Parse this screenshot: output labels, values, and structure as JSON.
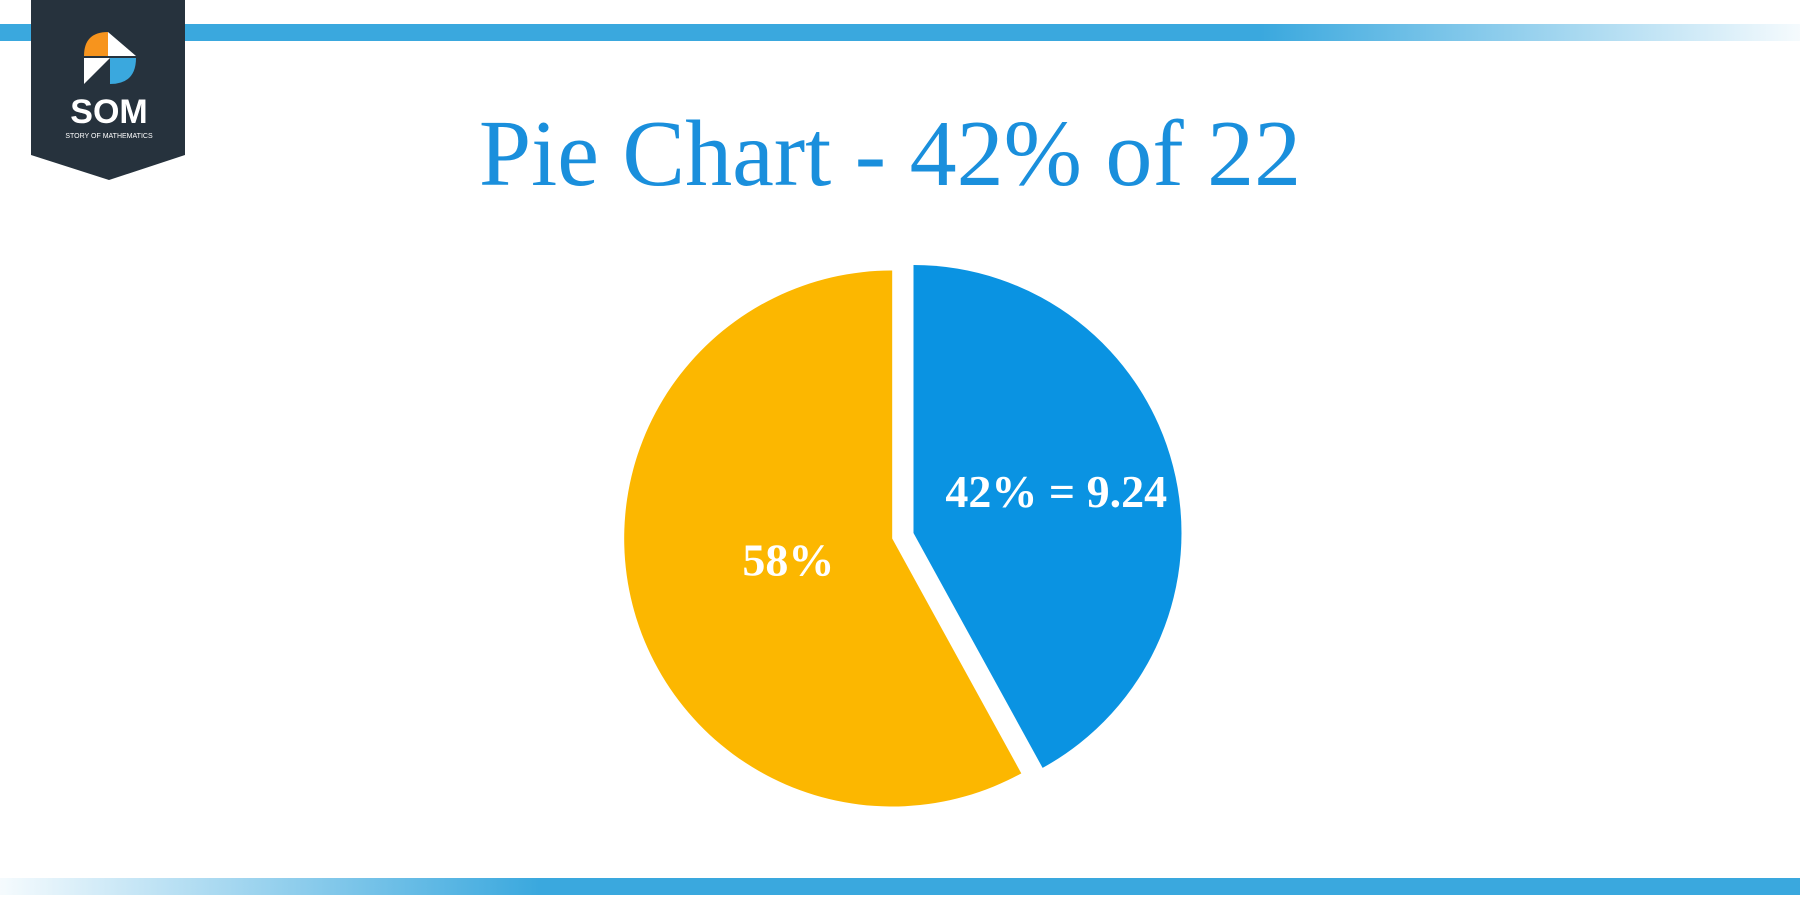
{
  "logo": {
    "name": "SOM",
    "tagline": "STORY OF MATHEMATICS"
  },
  "chart_data": {
    "type": "pie",
    "title": "Pie Chart - 42% of 22",
    "values": [
      42,
      58
    ],
    "colors": [
      "#0a93e2",
      "#fcb700"
    ],
    "value_labels": [
      "42% = 9.24",
      "58%"
    ]
  }
}
